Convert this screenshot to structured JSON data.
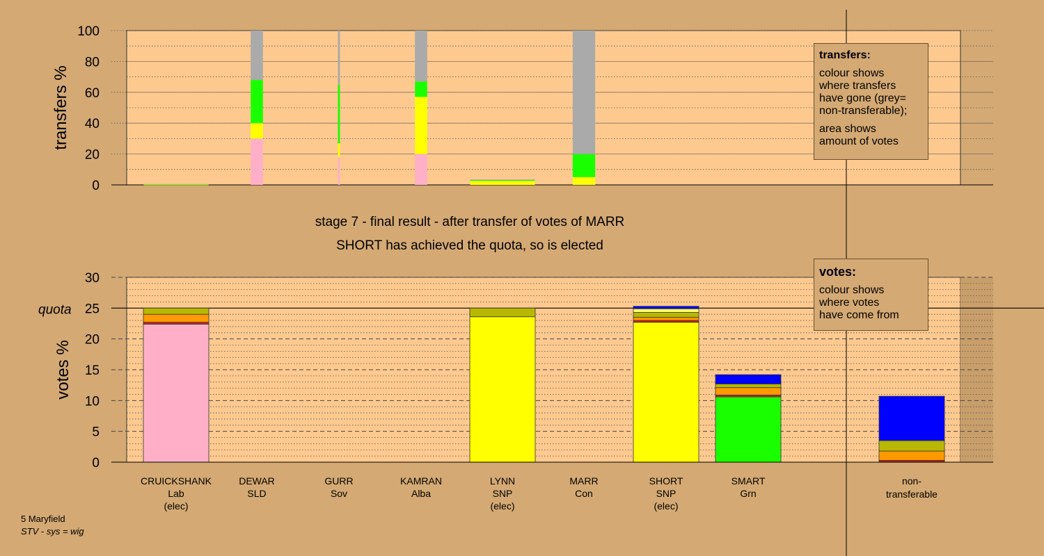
{
  "chart_data": [
    {
      "type": "bar",
      "stacked": true,
      "panel": "transfers",
      "ylabel": "transfers %",
      "ylim": [
        0,
        100
      ],
      "yticks": [
        0,
        20,
        40,
        60,
        80,
        100
      ],
      "grid": true,
      "categories": [
        "CRUICKSHANK",
        "DEWAR",
        "GURR",
        "KAMRAN",
        "LYNN",
        "MARR"
      ],
      "bars": [
        {
          "candidate": "CRUICKSHANK",
          "relative_width": 0.95,
          "segments": [
            {
              "color": "#ffb0c8",
              "value": 0.1
            },
            {
              "color": "#ffff00",
              "value": 0.1
            },
            {
              "color": "#1aff00",
              "value": 0.3
            }
          ]
        },
        {
          "candidate": "DEWAR",
          "relative_width": 0.18,
          "segments": [
            {
              "color": "#ffb0c8",
              "value": 30
            },
            {
              "color": "#ffff00",
              "value": 10
            },
            {
              "color": "#1aff00",
              "value": 28
            },
            {
              "color": "#aaaaaa",
              "value": 32
            }
          ]
        },
        {
          "candidate": "GURR",
          "relative_width": 0.03,
          "segments": [
            {
              "color": "#ffb0c8",
              "value": 18
            },
            {
              "color": "#ffff00",
              "value": 9
            },
            {
              "color": "#1aff00",
              "value": 38
            },
            {
              "color": "#aaaaaa",
              "value": 35
            }
          ]
        },
        {
          "candidate": "KAMRAN",
          "relative_width": 0.18,
          "segments": [
            {
              "color": "#ffb0c8",
              "value": 20
            },
            {
              "color": "#ffff00",
              "value": 37
            },
            {
              "color": "#1aff00",
              "value": 10
            },
            {
              "color": "#aaaaaa",
              "value": 33
            }
          ]
        },
        {
          "candidate": "LYNN",
          "relative_width": 0.95,
          "segments": [
            {
              "color": "#ffff00",
              "value": 2.5
            },
            {
              "color": "#1aff00",
              "value": 0.5
            },
            {
              "color": "#aaaaaa",
              "value": 0.5
            }
          ]
        },
        {
          "candidate": "MARR",
          "relative_width": 0.33,
          "segments": [
            {
              "color": "#ffff00",
              "value": 5
            },
            {
              "color": "#1aff00",
              "value": 15
            },
            {
              "color": "#aaaaaa",
              "value": 80
            }
          ]
        }
      ]
    },
    {
      "type": "bar",
      "stacked": true,
      "panel": "votes",
      "ylabel": "votes %",
      "ylim": [
        0,
        30
      ],
      "yticks": [
        0,
        5,
        10,
        15,
        20,
        25,
        30
      ],
      "quota": 25,
      "quota_label": "quota",
      "grid": true,
      "candidates": [
        {
          "name": "CRUICKSHANK",
          "party": "Lab",
          "status": "(elec)"
        },
        {
          "name": "DEWAR",
          "party": "SLD",
          "status": ""
        },
        {
          "name": "GURR",
          "party": "Sov",
          "status": ""
        },
        {
          "name": "KAMRAN",
          "party": "Alba",
          "status": ""
        },
        {
          "name": "LYNN",
          "party": "SNP",
          "status": "(elec)"
        },
        {
          "name": "MARR",
          "party": "Con",
          "status": ""
        },
        {
          "name": "SHORT",
          "party": "SNP",
          "status": "(elec)"
        },
        {
          "name": "SMART",
          "party": "Grn",
          "status": ""
        }
      ],
      "nontransferable_label_1": "non-",
      "nontransferable_label_2": "transferable",
      "bars": [
        {
          "candidate": "CRUICKSHANK",
          "segments": [
            {
              "color": "#ffb0c8",
              "value": 22.4
            },
            {
              "color": "#cc2222",
              "value": 0.3
            },
            {
              "color": "#ff9900",
              "value": 1.3
            },
            {
              "color": "#b8b800",
              "value": 1.0
            }
          ]
        },
        {
          "candidate": "DEWAR",
          "segments": []
        },
        {
          "candidate": "GURR",
          "segments": []
        },
        {
          "candidate": "KAMRAN",
          "segments": []
        },
        {
          "candidate": "LYNN",
          "segments": [
            {
              "color": "#ffff00",
              "value": 23.6
            },
            {
              "color": "#b8b800",
              "value": 1.4
            }
          ]
        },
        {
          "candidate": "MARR",
          "segments": []
        },
        {
          "candidate": "SHORT",
          "segments": [
            {
              "color": "#ffff00",
              "value": 22.7
            },
            {
              "color": "#cc2222",
              "value": 0.3
            },
            {
              "color": "#ff9900",
              "value": 0.5
            },
            {
              "color": "#b8b800",
              "value": 0.8
            },
            {
              "color": "#ffff66",
              "value": 0.6
            },
            {
              "color": "#0000ff",
              "value": 0.4
            }
          ]
        },
        {
          "candidate": "SMART",
          "segments": [
            {
              "color": "#1aff00",
              "value": 10.6
            },
            {
              "color": "#cc2222",
              "value": 0.3
            },
            {
              "color": "#ff9900",
              "value": 1.2
            },
            {
              "color": "#b8b800",
              "value": 0.6
            },
            {
              "color": "#0000ff",
              "value": 1.5
            }
          ]
        },
        {
          "candidate": "non-transferable",
          "segments": [
            {
              "color": "#cc2222",
              "value": 0.3
            },
            {
              "color": "#ff9900",
              "value": 1.5
            },
            {
              "color": "#b8b800",
              "value": 1.7
            },
            {
              "color": "#0000ff",
              "value": 7.2
            }
          ]
        }
      ]
    }
  ],
  "stage_line_1": "stage 7 - final result - after transfer of votes of MARR",
  "stage_line_2": "SHORT has achieved the quota, so is elected",
  "legend_transfers": {
    "title": "transfers:",
    "lines_1": [
      "colour shows",
      "where transfers",
      "have gone (grey=",
      "non-transferable);"
    ],
    "lines_2": [
      "area shows",
      "amount of votes"
    ]
  },
  "legend_votes": {
    "title": "votes:",
    "lines": [
      "colour shows",
      "where votes",
      "have come from"
    ]
  },
  "footer": {
    "ward": "5 Maryfield",
    "system": "STV - sys = wig"
  },
  "colors": {
    "background": "#d4a973",
    "plot_background": "#fdc98f",
    "Lab": "#ffb0c8",
    "SNP": "#ffff00",
    "Grn": "#1aff00",
    "Con": "#0000ff",
    "non_transferable": "#aaaaaa"
  }
}
